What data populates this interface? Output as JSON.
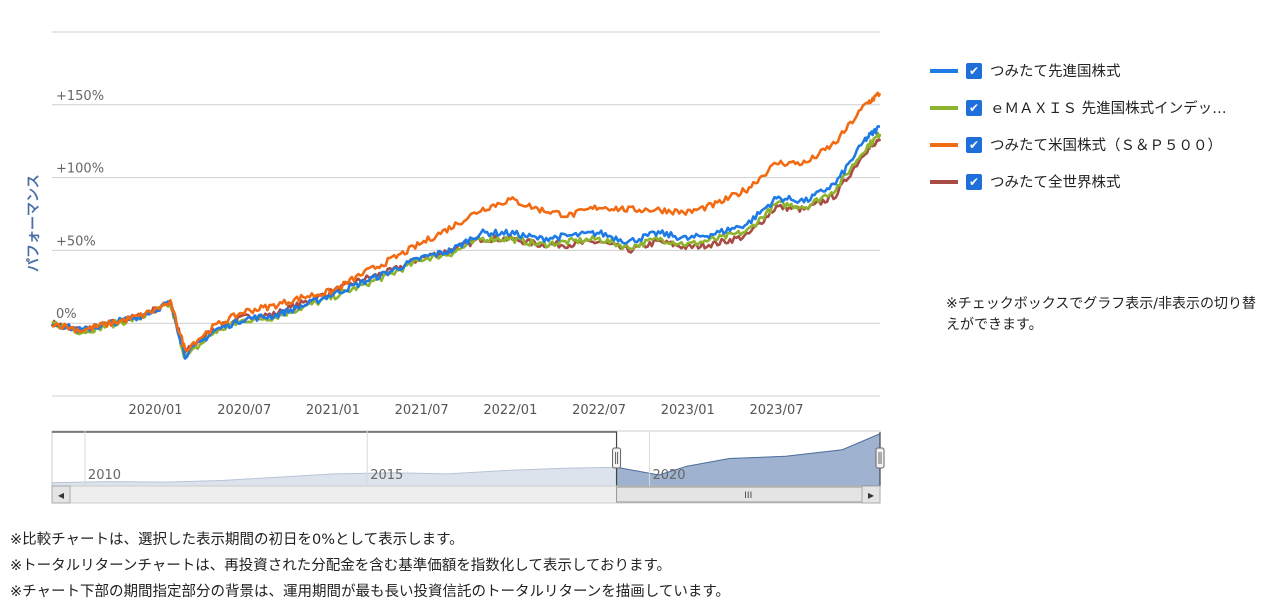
{
  "chart_data": {
    "type": "line",
    "ylabel": "パフォーマンス",
    "y_ticks": [
      {
        "value": 0,
        "label": "0%"
      },
      {
        "value": 50,
        "label": "+50%"
      },
      {
        "value": 100,
        "label": "+100%"
      },
      {
        "value": 150,
        "label": "+150%"
      }
    ],
    "ylim": [
      -50,
      200
    ],
    "x_ticks": [
      "2020/01",
      "2020/07",
      "2021/01",
      "2021/07",
      "2022/01",
      "2022/07",
      "2023/01",
      "2023/07"
    ],
    "xlim": [
      "2019-06",
      "2024-02"
    ],
    "grid": true,
    "legend_position": "right",
    "series": [
      {
        "name": "つみたて先進国株式",
        "color": "#1e7be6",
        "points": [
          [
            "2019-06",
            0
          ],
          [
            "2019-08",
            -5
          ],
          [
            "2019-10",
            0
          ],
          [
            "2019-12",
            5
          ],
          [
            "2020-02",
            14
          ],
          [
            "2020-03",
            -22
          ],
          [
            "2020-05",
            -5
          ],
          [
            "2020-07",
            3
          ],
          [
            "2020-09",
            5
          ],
          [
            "2020-11",
            12
          ],
          [
            "2021-01",
            20
          ],
          [
            "2021-03",
            28
          ],
          [
            "2021-05",
            36
          ],
          [
            "2021-07",
            45
          ],
          [
            "2021-09",
            50
          ],
          [
            "2021-11",
            62
          ],
          [
            "2022-01",
            62
          ],
          [
            "2022-03",
            58
          ],
          [
            "2022-05",
            60
          ],
          [
            "2022-07",
            62
          ],
          [
            "2022-09",
            56
          ],
          [
            "2022-11",
            62
          ],
          [
            "2023-01",
            58
          ],
          [
            "2023-03",
            62
          ],
          [
            "2023-05",
            68
          ],
          [
            "2023-07",
            86
          ],
          [
            "2023-09",
            84
          ],
          [
            "2023-11",
            96
          ],
          [
            "2024-01",
            126
          ],
          [
            "2024-02",
            135
          ]
        ]
      },
      {
        "name": "ｅＭＡＸＩＳ 先進国株式インデックス",
        "color": "#8db42c",
        "points": [
          [
            "2019-06",
            0
          ],
          [
            "2019-08",
            -6
          ],
          [
            "2019-10",
            -1
          ],
          [
            "2019-12",
            4
          ],
          [
            "2020-02",
            13
          ],
          [
            "2020-03",
            -24
          ],
          [
            "2020-05",
            -6
          ],
          [
            "2020-07",
            2
          ],
          [
            "2020-09",
            4
          ],
          [
            "2020-11",
            11
          ],
          [
            "2021-01",
            18
          ],
          [
            "2021-03",
            26
          ],
          [
            "2021-05",
            34
          ],
          [
            "2021-07",
            44
          ],
          [
            "2021-09",
            48
          ],
          [
            "2021-11",
            58
          ],
          [
            "2022-01",
            58
          ],
          [
            "2022-03",
            54
          ],
          [
            "2022-05",
            56
          ],
          [
            "2022-07",
            58
          ],
          [
            "2022-09",
            52
          ],
          [
            "2022-11",
            58
          ],
          [
            "2023-01",
            54
          ],
          [
            "2023-03",
            58
          ],
          [
            "2023-05",
            63
          ],
          [
            "2023-07",
            82
          ],
          [
            "2023-09",
            80
          ],
          [
            "2023-11",
            92
          ],
          [
            "2024-01",
            120
          ],
          [
            "2024-02",
            130
          ]
        ]
      },
      {
        "name": "つみたて米国株式（Ｓ＆Ｐ５００）",
        "color": "#f26b12",
        "points": [
          [
            "2019-06",
            0
          ],
          [
            "2019-08",
            -5
          ],
          [
            "2019-10",
            0
          ],
          [
            "2019-12",
            5
          ],
          [
            "2020-02",
            14
          ],
          [
            "2020-03",
            -18
          ],
          [
            "2020-05",
            -2
          ],
          [
            "2020-07",
            8
          ],
          [
            "2020-09",
            12
          ],
          [
            "2020-11",
            18
          ],
          [
            "2021-01",
            22
          ],
          [
            "2021-03",
            34
          ],
          [
            "2021-05",
            44
          ],
          [
            "2021-07",
            55
          ],
          [
            "2021-09",
            66
          ],
          [
            "2021-11",
            78
          ],
          [
            "2022-01",
            85
          ],
          [
            "2022-03",
            78
          ],
          [
            "2022-05",
            74
          ],
          [
            "2022-07",
            80
          ],
          [
            "2022-09",
            78
          ],
          [
            "2022-11",
            78
          ],
          [
            "2023-01",
            76
          ],
          [
            "2023-03",
            82
          ],
          [
            "2023-05",
            92
          ],
          [
            "2023-07",
            110
          ],
          [
            "2023-09",
            110
          ],
          [
            "2023-11",
            124
          ],
          [
            "2024-01",
            150
          ],
          [
            "2024-02",
            158
          ]
        ]
      },
      {
        "name": "つみたて全世界株式",
        "color": "#a84b45",
        "points": [
          [
            "2019-06",
            0
          ],
          [
            "2019-08",
            -5
          ],
          [
            "2019-10",
            0
          ],
          [
            "2019-12",
            5
          ],
          [
            "2020-02",
            14
          ],
          [
            "2020-03",
            -20
          ],
          [
            "2020-05",
            -4
          ],
          [
            "2020-07",
            4
          ],
          [
            "2020-09",
            6
          ],
          [
            "2020-11",
            14
          ],
          [
            "2021-01",
            22
          ],
          [
            "2021-03",
            30
          ],
          [
            "2021-05",
            36
          ],
          [
            "2021-07",
            45
          ],
          [
            "2021-09",
            50
          ],
          [
            "2021-11",
            58
          ],
          [
            "2022-01",
            58
          ],
          [
            "2022-03",
            54
          ],
          [
            "2022-05",
            54
          ],
          [
            "2022-07",
            56
          ],
          [
            "2022-09",
            50
          ],
          [
            "2022-11",
            56
          ],
          [
            "2023-01",
            52
          ],
          [
            "2023-03",
            55
          ],
          [
            "2023-05",
            60
          ],
          [
            "2023-07",
            80
          ],
          [
            "2023-09",
            78
          ],
          [
            "2023-11",
            88
          ],
          [
            "2024-01",
            118
          ],
          [
            "2024-02",
            125
          ]
        ]
      }
    ],
    "navigator": {
      "labels": [
        "2010",
        "2015",
        "2020"
      ],
      "points": [
        [
          "2009-06",
          0.06
        ],
        [
          "2010-06",
          0.08
        ],
        [
          "2011-06",
          0.07
        ],
        [
          "2012-06",
          0.1
        ],
        [
          "2013-06",
          0.16
        ],
        [
          "2014-06",
          0.22
        ],
        [
          "2015-06",
          0.24
        ],
        [
          "2016-06",
          0.22
        ],
        [
          "2017-06",
          0.28
        ],
        [
          "2018-06",
          0.32
        ],
        [
          "2019-06",
          0.34
        ],
        [
          "2020-03",
          0.2
        ],
        [
          "2020-09",
          0.36
        ],
        [
          "2021-06",
          0.5
        ],
        [
          "2022-06",
          0.54
        ],
        [
          "2023-06",
          0.66
        ],
        [
          "2024-02",
          0.95
        ]
      ],
      "selected_range": [
        "2019-06",
        "2024-02"
      ]
    }
  },
  "legend": {
    "items": [
      {
        "label": "つみたて先進国株式",
        "color": "#1e7be6",
        "checked": "✔"
      },
      {
        "label": "ｅＭＡＸＩＳ 先進国株式インデッ…",
        "color": "#8db42c",
        "checked": "✔"
      },
      {
        "label": "つみたて米国株式（Ｓ＆Ｐ５００）",
        "color": "#f26b12",
        "checked": "✔"
      },
      {
        "label": "つみたて全世界株式",
        "color": "#a84b45",
        "checked": "✔"
      }
    ]
  },
  "notes": {
    "right": "※チェックボックスでグラフ表示/非表示の切り替えができます。",
    "footnotes": [
      "※比較チャートは、選択した表示期間の初日を0%として表示します。",
      "※トータルリターンチャートは、再投資された分配金を含む基準価額を指数化して表示しております。",
      "※チャート下部の期間指定部分の背景は、運用期間が最も長い投資信託のトータルリターンを描画しています。"
    ]
  },
  "navigator_controls": {
    "left_arrow": "◂",
    "right_arrow": "▸",
    "scroll_grip": "III"
  }
}
